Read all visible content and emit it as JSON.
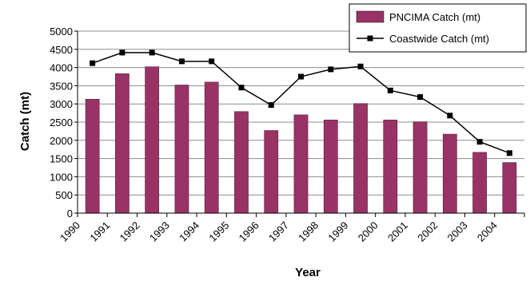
{
  "chart_data": {
    "type": "bar",
    "title": "",
    "xlabel": "Year",
    "ylabel": "Catch (mt)",
    "ylim": [
      0,
      5000
    ],
    "yticks": [
      0,
      500,
      1000,
      1500,
      2000,
      2500,
      3000,
      3500,
      4000,
      4500,
      5000
    ],
    "categories": [
      "1990",
      "1991",
      "1992",
      "1993",
      "1994",
      "1995",
      "1996",
      "1997",
      "1998",
      "1999",
      "2000",
      "2001",
      "2002",
      "2003",
      "2004"
    ],
    "grid": "horizontal",
    "legend_position": "top-right",
    "series": [
      {
        "name": "PNCIMA Catch (mt)",
        "type": "bar",
        "color": "#993366",
        "values": [
          3130,
          3830,
          4020,
          3520,
          3600,
          2790,
          2270,
          2700,
          2560,
          3010,
          2560,
          2510,
          2170,
          1670,
          1390
        ]
      },
      {
        "name": "Coastwide Catch (mt)",
        "type": "line",
        "marker": "square",
        "color": "#000000",
        "values": [
          4120,
          4410,
          4410,
          4170,
          4170,
          3450,
          2970,
          3750,
          3950,
          4030,
          3370,
          3190,
          2680,
          1960,
          1650
        ]
      }
    ]
  }
}
